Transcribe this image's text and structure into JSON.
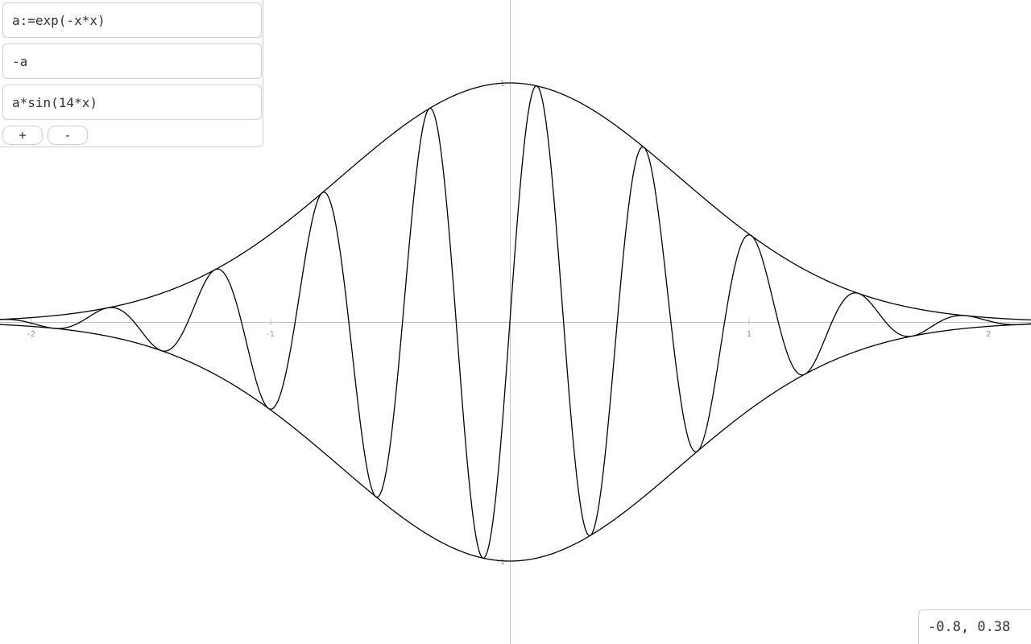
{
  "expressions": [
    {
      "value": "a:=exp(-x*x)"
    },
    {
      "value": "-a"
    },
    {
      "value": "a*sin(14*x)"
    }
  ],
  "buttons": {
    "add_label": "+",
    "remove_label": "-"
  },
  "cursor_coordinates": "-0.8, 0.38",
  "graph": {
    "x_ticks": [
      "-2",
      "-1",
      "1",
      "2"
    ],
    "y_ticks": [
      "1",
      "-1"
    ],
    "axis_color": "#c0c0c0",
    "curve_color": "#000000",
    "tick_label_color": "#999999"
  },
  "chart_data": {
    "type": "line",
    "title": "",
    "xlabel": "",
    "ylabel": "",
    "xlim": [
      -2.13,
      2.18
    ],
    "ylim": [
      -1.35,
      1.35
    ],
    "grid": false,
    "series": [
      {
        "expression": "exp(-x*x)",
        "function": "exp(-x^2)"
      },
      {
        "expression": "-a",
        "function": "-exp(-x^2)"
      },
      {
        "expression": "a*sin(14*x)",
        "function": "exp(-x^2)*sin(14x)"
      }
    ]
  }
}
